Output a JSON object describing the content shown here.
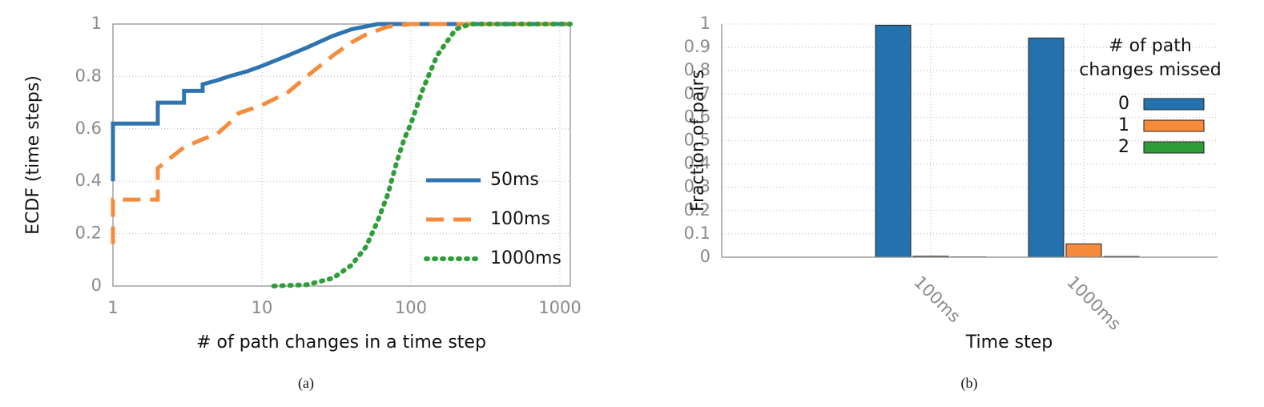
{
  "chart_data": [
    {
      "type": "line",
      "caption": "(a)",
      "x_label": "# of path changes in a time step",
      "y_label": "ECDF (time steps)",
      "log_x": true,
      "grid": true,
      "legend_position": "center right",
      "xlim": [
        1,
        1175
      ],
      "xticks": [
        1,
        10,
        100,
        1000
      ],
      "ylim": [
        0,
        1
      ],
      "yticks": [
        0,
        0.2,
        0.4,
        0.6,
        0.8,
        1
      ],
      "series": [
        {
          "name": "50ms",
          "color": "#2f74b0",
          "style": "solid",
          "x": [
            1,
            1,
            2,
            2,
            3,
            3,
            4,
            4,
            5,
            6,
            8,
            10,
            15,
            20,
            30,
            40,
            60,
            1175
          ],
          "values": [
            0.4,
            0.62,
            0.62,
            0.7,
            0.7,
            0.745,
            0.745,
            0.77,
            0.785,
            0.8,
            0.82,
            0.84,
            0.88,
            0.91,
            0.955,
            0.98,
            1.0,
            1.0
          ]
        },
        {
          "name": "100ms",
          "color": "#f58b3b",
          "style": "dashed",
          "x": [
            1,
            1,
            2,
            2,
            3,
            4,
            5,
            6,
            7,
            10,
            15,
            20,
            30,
            40,
            50,
            70,
            100,
            1175
          ],
          "values": [
            0.16,
            0.33,
            0.33,
            0.45,
            0.53,
            0.56,
            0.58,
            0.62,
            0.66,
            0.69,
            0.74,
            0.8,
            0.88,
            0.93,
            0.96,
            0.99,
            1.0,
            1.0
          ]
        },
        {
          "name": "1000ms",
          "color": "#2f9e3a",
          "style": "dotted",
          "x": [
            12,
            20,
            30,
            40,
            50,
            60,
            70,
            80,
            90,
            100,
            120,
            150,
            200,
            250,
            1175
          ],
          "values": [
            0,
            0.005,
            0.03,
            0.08,
            0.15,
            0.25,
            0.35,
            0.47,
            0.56,
            0.62,
            0.75,
            0.88,
            0.98,
            1.0,
            1.0
          ]
        }
      ]
    },
    {
      "type": "bar",
      "caption": "(b)",
      "x_label": "Time step",
      "y_label": "Fraction of pairs",
      "grid": true,
      "legend_position": "upper right",
      "legend_title": [
        "# of path",
        "changes missed"
      ],
      "categories": [
        "100ms",
        "1000ms"
      ],
      "ylim": [
        0,
        1
      ],
      "yticks": [
        0,
        0.1,
        0.2,
        0.3,
        0.4,
        0.5,
        0.6,
        0.7,
        0.8,
        0.9,
        1
      ],
      "series": [
        {
          "name": "0",
          "color": "#2372ae",
          "values": [
            0.995,
            0.94
          ]
        },
        {
          "name": "1",
          "color": "#f58b3b",
          "values": [
            0.004,
            0.057
          ]
        },
        {
          "name": "2",
          "color": "#2f9e3a",
          "values": [
            0.001,
            0.003
          ]
        }
      ]
    }
  ]
}
